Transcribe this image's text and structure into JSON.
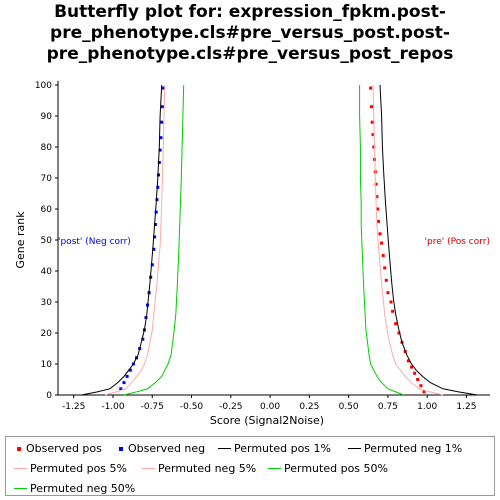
{
  "chart_data": {
    "type": "line",
    "title_lines": [
      "Butterfly plot for: expression_fpkm.post-",
      "pre_phenotype.cls#pre_versus_post.post-",
      "pre_phenotype.cls#pre_versus_post_repos"
    ],
    "xlabel": "Score (Signal2Noise)",
    "ylabel": "Gene rank",
    "xlim": [
      -1.35,
      1.4
    ],
    "ylim": [
      0,
      100
    ],
    "x_ticks": [
      "-1.25",
      "-1.00",
      "-0.75",
      "-0.50",
      "-0.25",
      "0.00",
      "0.25",
      "0.50",
      "0.75",
      "1.00",
      "1.25"
    ],
    "x_tick_values": [
      -1.25,
      -1.0,
      -0.75,
      -0.5,
      -0.25,
      0.0,
      0.25,
      0.5,
      0.75,
      1.0,
      1.25
    ],
    "y_ticks": [
      "0",
      "10",
      "20",
      "30",
      "40",
      "50",
      "60",
      "70",
      "80",
      "90",
      "100"
    ],
    "y_tick_values": [
      0,
      10,
      20,
      30,
      40,
      50,
      60,
      70,
      80,
      90,
      100
    ],
    "annotations": {
      "neg": {
        "text": "'post' (Neg corr)",
        "x": -1.25,
        "y": 50,
        "color": "#0000cc"
      },
      "pos": {
        "text": "'pre' (Pos corr)",
        "x": 1.28,
        "y": 50,
        "color": "#cc0000"
      }
    },
    "legend_position": "bottom",
    "series": [
      {
        "name": "Observed pos",
        "kind": "points",
        "color": "#ff0000",
        "x": [
          0.98,
          0.96,
          0.94,
          0.92,
          0.9,
          0.88,
          0.86,
          0.84,
          0.82,
          0.8,
          0.78,
          0.77,
          0.75,
          0.74,
          0.73,
          0.72,
          0.71,
          0.7,
          0.69,
          0.685,
          0.68,
          0.675,
          0.67,
          0.665,
          0.66,
          0.655,
          0.65,
          0.645,
          0.64
        ],
        "y": [
          1,
          3,
          5,
          7,
          9,
          11,
          14,
          17,
          20,
          23,
          27,
          30,
          33,
          37,
          41,
          45,
          49,
          52,
          56,
          60,
          64,
          68,
          72,
          76,
          80,
          84,
          88,
          93,
          99
        ]
      },
      {
        "name": "Observed neg",
        "kind": "points",
        "color": "#0000ff",
        "x": [
          -0.95,
          -0.93,
          -0.91,
          -0.89,
          -0.87,
          -0.85,
          -0.83,
          -0.81,
          -0.8,
          -0.79,
          -0.78,
          -0.77,
          -0.76,
          -0.75,
          -0.74,
          -0.735,
          -0.73,
          -0.725,
          -0.72,
          -0.715,
          -0.71,
          -0.705,
          -0.7,
          -0.695,
          -0.69,
          -0.685,
          -0.68
        ],
        "y": [
          2,
          4,
          6,
          8,
          10,
          12,
          15,
          18,
          21,
          25,
          29,
          33,
          38,
          42,
          47,
          51,
          55,
          59,
          63,
          67,
          71,
          75,
          79,
          83,
          88,
          93,
          99
        ]
      },
      {
        "name": "Permuted pos 1%",
        "kind": "line",
        "color": "#000000",
        "x": [
          1.32,
          1.2,
          1.1,
          1.02,
          0.97,
          0.93,
          0.9,
          0.87,
          0.84,
          0.82,
          0.8,
          0.785,
          0.775,
          0.765,
          0.755,
          0.745,
          0.735,
          0.725,
          0.715,
          0.71,
          0.7
        ],
        "y": [
          0,
          1,
          2,
          4,
          6,
          8,
          10,
          13,
          17,
          21,
          26,
          31,
          36,
          42,
          48,
          55,
          62,
          70,
          80,
          90,
          100
        ]
      },
      {
        "name": "Permuted neg 1%",
        "kind": "line",
        "color": "#000000",
        "x": [
          -1.2,
          -1.1,
          -1.02,
          -0.97,
          -0.93,
          -0.9,
          -0.87,
          -0.84,
          -0.82,
          -0.8,
          -0.785,
          -0.775,
          -0.765,
          -0.755,
          -0.745,
          -0.735,
          -0.725,
          -0.715,
          -0.705,
          -0.7,
          -0.69
        ],
        "y": [
          0,
          1,
          2,
          4,
          6,
          8,
          10,
          13,
          17,
          21,
          26,
          31,
          36,
          42,
          48,
          55,
          62,
          70,
          80,
          90,
          100
        ]
      },
      {
        "name": "Permuted pos 5%",
        "kind": "line",
        "color": "#ffaaaa",
        "x": [
          1.1,
          1.02,
          0.95,
          0.9,
          0.86,
          0.83,
          0.8,
          0.78,
          0.76,
          0.745,
          0.73,
          0.72,
          0.71,
          0.7,
          0.69,
          0.68,
          0.675,
          0.67,
          0.665,
          0.66,
          0.655
        ],
        "y": [
          0,
          1,
          2,
          4,
          6,
          8,
          10,
          13,
          17,
          21,
          26,
          31,
          36,
          42,
          48,
          55,
          62,
          70,
          80,
          90,
          100
        ]
      },
      {
        "name": "Permuted neg 5%",
        "kind": "line",
        "color": "#ffaaaa",
        "x": [
          -1.05,
          -0.98,
          -0.92,
          -0.88,
          -0.85,
          -0.82,
          -0.8,
          -0.78,
          -0.765,
          -0.75,
          -0.74,
          -0.73,
          -0.72,
          -0.71,
          -0.7,
          -0.695,
          -0.69,
          -0.685,
          -0.68,
          -0.675,
          -0.67
        ],
        "y": [
          0,
          1,
          2,
          4,
          6,
          8,
          10,
          13,
          17,
          21,
          26,
          31,
          36,
          42,
          48,
          55,
          62,
          70,
          80,
          90,
          100
        ]
      },
      {
        "name": "Permuted pos 50%",
        "kind": "line",
        "color": "#00cc00",
        "x": [
          0.85,
          0.8,
          0.75,
          0.71,
          0.68,
          0.66,
          0.64,
          0.63,
          0.62,
          0.61,
          0.605,
          0.6,
          0.595,
          0.59,
          0.585,
          0.58,
          0.58,
          0.575,
          0.575,
          0.57,
          0.57
        ],
        "y": [
          0,
          1,
          2,
          4,
          6,
          8,
          10,
          13,
          17,
          21,
          26,
          31,
          36,
          42,
          48,
          55,
          62,
          70,
          80,
          90,
          100
        ]
      },
      {
        "name": "Permuted neg 50%",
        "kind": "line",
        "color": "#00cc00",
        "x": [
          -0.93,
          -0.85,
          -0.78,
          -0.73,
          -0.69,
          -0.67,
          -0.65,
          -0.63,
          -0.62,
          -0.61,
          -0.6,
          -0.595,
          -0.59,
          -0.585,
          -0.58,
          -0.575,
          -0.57,
          -0.565,
          -0.56,
          -0.555,
          -0.55
        ],
        "y": [
          0,
          1,
          2,
          4,
          6,
          8,
          10,
          13,
          17,
          21,
          26,
          31,
          36,
          42,
          48,
          55,
          62,
          70,
          80,
          90,
          100
        ]
      }
    ]
  },
  "legend": {
    "items": [
      {
        "label": "Observed pos",
        "kind": "dot",
        "color": "#ff0000"
      },
      {
        "label": "Observed neg",
        "kind": "dot",
        "color": "#0000ff"
      },
      {
        "label": "Permuted pos 1%",
        "kind": "line",
        "color": "#000000"
      },
      {
        "label": "Permuted neg 1%",
        "kind": "line",
        "color": "#000000"
      },
      {
        "label": "Permuted pos 5%",
        "kind": "line",
        "color": "#ffaaaa"
      },
      {
        "label": "Permuted neg 5%",
        "kind": "line",
        "color": "#ffaaaa"
      },
      {
        "label": "Permuted pos 50%",
        "kind": "line",
        "color": "#00cc00"
      },
      {
        "label": "Permuted neg 50%",
        "kind": "line",
        "color": "#00cc00"
      }
    ]
  }
}
